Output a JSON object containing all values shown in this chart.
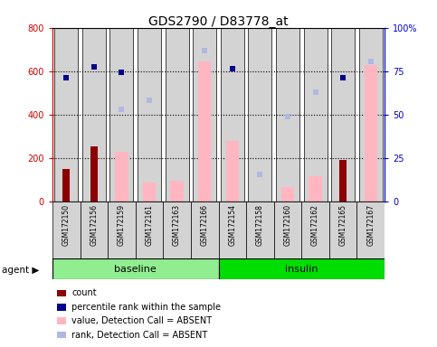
{
  "title": "GDS2790 / D83778_at",
  "samples": [
    "GSM172150",
    "GSM172156",
    "GSM172159",
    "GSM172161",
    "GSM172163",
    "GSM172166",
    "GSM172154",
    "GSM172158",
    "GSM172160",
    "GSM172162",
    "GSM172165",
    "GSM172167"
  ],
  "groups": [
    "baseline",
    "baseline",
    "baseline",
    "baseline",
    "baseline",
    "baseline",
    "insulin",
    "insulin",
    "insulin",
    "insulin",
    "insulin",
    "insulin"
  ],
  "count_values": [
    150,
    255,
    0,
    0,
    0,
    0,
    0,
    0,
    0,
    0,
    190,
    0
  ],
  "rank_values": [
    570,
    620,
    595,
    0,
    0,
    0,
    610,
    0,
    0,
    0,
    570,
    0
  ],
  "value_absent": [
    0,
    0,
    230,
    85,
    95,
    645,
    280,
    0,
    65,
    115,
    0,
    630
  ],
  "rank_absent": [
    0,
    0,
    425,
    465,
    0,
    695,
    0,
    125,
    390,
    505,
    0,
    645
  ],
  "ylim_left": [
    0,
    800
  ],
  "ylim_right": [
    0,
    100
  ],
  "yticks_left": [
    0,
    200,
    400,
    600,
    800
  ],
  "yticks_right": [
    0,
    25,
    50,
    75,
    100
  ],
  "ytick_right_labels": [
    "0",
    "25",
    "50",
    "75",
    "100%"
  ],
  "left_color": "#cc0000",
  "right_color": "#0000cc",
  "value_absent_color": "#ffb6c1",
  "rank_absent_color": "#b0b8e0",
  "count_color": "#8b0000",
  "rank_color": "#00008b",
  "bar_bg_color": "#d3d3d3",
  "baseline_color": "#90ee90",
  "insulin_color": "#00dd00",
  "title_fontsize": 10,
  "legend_items": [
    {
      "label": "count",
      "color": "#8b0000"
    },
    {
      "label": "percentile rank within the sample",
      "color": "#00008b"
    },
    {
      "label": "value, Detection Call = ABSENT",
      "color": "#ffb6c1"
    },
    {
      "label": "rank, Detection Call = ABSENT",
      "color": "#b0b8e0"
    }
  ],
  "dotted_lines": [
    200,
    400,
    600
  ],
  "hgrid_color": "black",
  "hgrid_linestyle": ":",
  "hgrid_linewidth": 0.8
}
